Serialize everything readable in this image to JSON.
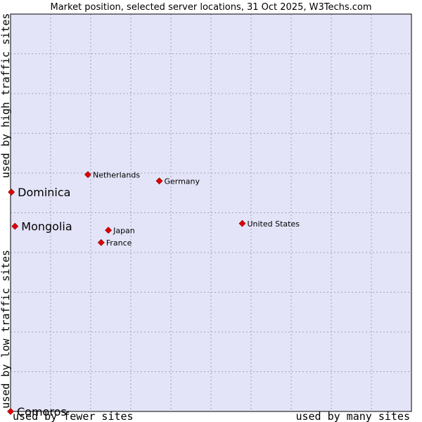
{
  "chart_data": {
    "type": "scatter",
    "title": "Market position, selected server locations, 31 Oct 2025, W3Techs.com",
    "xlabel_low": "used by fewer sites",
    "xlabel_high": "used by many sites",
    "ylabel_low": "used by low traffic sites",
    "ylabel_high": "used by high traffic sites",
    "xlim": [
      0,
      100
    ],
    "ylim": [
      0,
      100
    ],
    "grid": true,
    "colors": {
      "plot_bg": "#e4e4f8",
      "marker": "#e00000",
      "marker_edge": "#800000",
      "frame": "#000000"
    },
    "points": [
      {
        "label": "Netherlands",
        "x": 19.3,
        "y": 59.6,
        "emphasis": false
      },
      {
        "label": "Germany",
        "x": 37.1,
        "y": 58.0,
        "emphasis": false
      },
      {
        "label": "United States",
        "x": 57.8,
        "y": 47.3,
        "emphasis": false
      },
      {
        "label": "Japan",
        "x": 24.4,
        "y": 45.6,
        "emphasis": false
      },
      {
        "label": "France",
        "x": 22.6,
        "y": 42.5,
        "emphasis": false
      },
      {
        "label": "Dominica",
        "x": 0.2,
        "y": 55.2,
        "emphasis": true
      },
      {
        "label": "Mongolia",
        "x": 1.1,
        "y": 46.6,
        "emphasis": true
      },
      {
        "label": "Comoros",
        "x": 0.0,
        "y": 0.0,
        "emphasis": true
      }
    ]
  }
}
